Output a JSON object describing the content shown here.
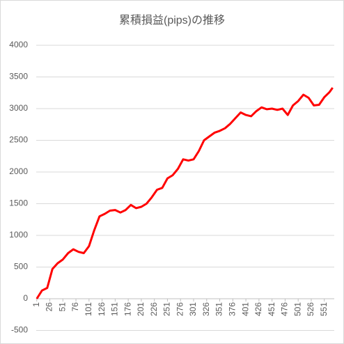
{
  "chart_data": {
    "type": "line",
    "title": "累積損益(pips)の推移",
    "series": [
      {
        "name": "累積損益",
        "color": "#ff0000",
        "x": [
          1,
          11,
          21,
          31,
          41,
          51,
          61,
          71,
          81,
          91,
          101,
          111,
          121,
          131,
          141,
          151,
          161,
          171,
          181,
          191,
          201,
          211,
          221,
          231,
          241,
          251,
          261,
          271,
          281,
          291,
          301,
          311,
          321,
          331,
          341,
          351,
          361,
          371,
          381,
          391,
          401,
          411,
          421,
          431,
          441,
          451,
          461,
          471,
          481,
          491,
          501,
          511,
          521,
          531,
          541,
          551,
          561,
          567
        ],
        "values": [
          0,
          130,
          170,
          470,
          560,
          620,
          720,
          780,
          740,
          720,
          830,
          1080,
          1300,
          1340,
          1390,
          1400,
          1360,
          1400,
          1480,
          1430,
          1450,
          1500,
          1600,
          1720,
          1750,
          1900,
          1950,
          2050,
          2200,
          2180,
          2200,
          2330,
          2500,
          2560,
          2620,
          2650,
          2690,
          2760,
          2850,
          2940,
          2900,
          2880,
          2960,
          3020,
          2990,
          3000,
          2980,
          3000,
          2900,
          3050,
          3120,
          3220,
          3170,
          3050,
          3060,
          3180,
          3260,
          3330
        ]
      }
    ],
    "xlim": [
      0,
      570
    ],
    "xticks": [
      1,
      26,
      51,
      76,
      101,
      126,
      151,
      176,
      201,
      226,
      251,
      276,
      301,
      326,
      351,
      376,
      401,
      426,
      451,
      476,
      501,
      526,
      551
    ],
    "ylim": [
      -500,
      4000
    ],
    "yticks": [
      -500,
      0,
      500,
      1000,
      1500,
      2000,
      2500,
      3000,
      3500,
      4000
    ],
    "grid": true
  }
}
